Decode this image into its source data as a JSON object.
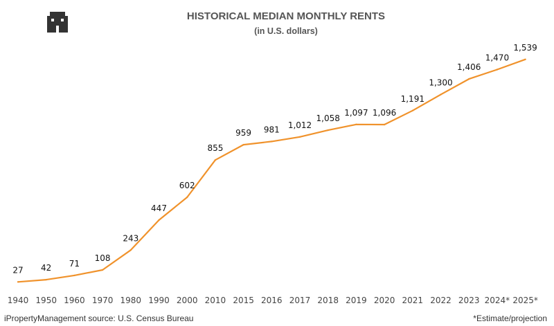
{
  "header": {
    "title": "HISTORICAL MEDIAN MONTHLY RENTS",
    "subtitle": "(in U.S. dollars)",
    "logo_icon": "building-icon"
  },
  "footer": {
    "source": "iPropertyManagement source: U.S. Census Bureau",
    "note": "*Estimate/projection"
  },
  "colors": {
    "line": "#F0922B",
    "title_text": "#555555"
  },
  "chart_data": {
    "type": "line",
    "title": "HISTORICAL MEDIAN MONTHLY RENTS",
    "subtitle": "(in U.S. dollars)",
    "categories": [
      "1940",
      "1950",
      "1960",
      "1970",
      "1980",
      "1990",
      "2000",
      "2010",
      "2015",
      "2016",
      "2017",
      "2018",
      "2019",
      "2020",
      "2021",
      "2022",
      "2023",
      "2024*",
      "2025*"
    ],
    "values": [
      27,
      42,
      71,
      108,
      243,
      447,
      602,
      855,
      959,
      981,
      1012,
      1058,
      1097,
      1096,
      1191,
      1300,
      1406,
      1470,
      1539
    ],
    "labels": [
      "27",
      "42",
      "71",
      "108",
      "243",
      "447",
      "602",
      "855",
      "959",
      "981",
      "1,012",
      "1,058",
      "1,097",
      "1,096",
      "1,191",
      "1,300",
      "1,406",
      "1,470",
      "1,539"
    ],
    "xlabel": "",
    "ylabel": "",
    "grid": false,
    "legend": "none"
  }
}
